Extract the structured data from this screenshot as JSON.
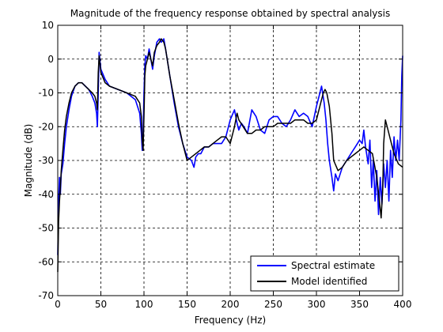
{
  "chart_data": {
    "type": "line",
    "title": "Magnitude of the frequency response obtained by spectral analysis",
    "xlabel": "Frequency (Hz)",
    "ylabel": "Magnitude (dB)",
    "xlim": [
      0,
      400
    ],
    "ylim": [
      -70,
      10
    ],
    "xticks": [
      0,
      50,
      100,
      150,
      200,
      250,
      300,
      350,
      400
    ],
    "yticks": [
      -70,
      -60,
      -50,
      -40,
      -30,
      -20,
      -10,
      0,
      10
    ],
    "grid": true,
    "legend_position": "bottom-right",
    "series": [
      {
        "name": "Spectral estimate",
        "color": "#0000ff",
        "x": [
          0,
          1,
          2,
          3,
          4,
          6,
          8,
          10,
          13,
          16,
          20,
          24,
          28,
          32,
          36,
          40,
          43,
          45,
          46,
          47,
          48,
          50,
          55,
          60,
          70,
          80,
          90,
          95,
          97,
          98,
          99,
          100,
          101,
          102,
          104,
          106,
          108,
          110,
          112,
          115,
          118,
          120,
          123,
          125,
          130,
          135,
          140,
          145,
          150,
          155,
          158,
          160,
          163,
          166,
          170,
          175,
          180,
          185,
          190,
          195,
          200,
          205,
          208,
          210,
          213,
          216,
          220,
          225,
          230,
          235,
          240,
          245,
          250,
          255,
          260,
          265,
          270,
          275,
          280,
          285,
          290,
          295,
          300,
          303,
          306,
          309,
          311,
          313,
          315,
          318,
          320,
          322,
          325,
          330,
          335,
          340,
          345,
          350,
          353,
          355,
          357,
          360,
          362,
          364,
          366,
          368,
          370,
          372,
          374,
          376,
          378,
          380,
          382,
          384,
          386,
          388,
          390,
          392,
          394,
          396,
          398,
          399,
          400
        ],
        "y": [
          -58,
          -42,
          -35,
          -40,
          -34,
          -31,
          -25,
          -20,
          -15,
          -11,
          -8,
          -7,
          -7,
          -8,
          -9,
          -11,
          -13,
          -16,
          -20,
          -10,
          2,
          -3,
          -6,
          -8,
          -9,
          -10,
          -12,
          -16,
          -22,
          -27,
          -22,
          -10,
          -2,
          1,
          0,
          3,
          0,
          -3,
          1,
          5,
          6,
          5,
          6,
          3,
          -5,
          -13,
          -20,
          -25,
          -29,
          -30,
          -32,
          -29,
          -28,
          -28,
          -26,
          -26,
          -25,
          -25,
          -25,
          -23,
          -18,
          -15,
          -19,
          -21,
          -19,
          -20,
          -22,
          -15,
          -17,
          -21,
          -22,
          -18,
          -17,
          -17,
          -19,
          -20,
          -18,
          -15,
          -17,
          -16,
          -17,
          -20,
          -14,
          -11,
          -8,
          -13,
          -18,
          -25,
          -30,
          -35,
          -39,
          -34,
          -36,
          -32,
          -30,
          -28,
          -26,
          -24,
          -25,
          -21,
          -26,
          -31,
          -24,
          -38,
          -30,
          -42,
          -33,
          -46,
          -35,
          -43,
          -31,
          -38,
          -30,
          -42,
          -27,
          -35,
          -23,
          -30,
          -24,
          -30,
          -18,
          -5,
          1
        ]
      },
      {
        "name": "Model identified",
        "color": "#000000",
        "x": [
          0,
          1,
          2,
          3,
          4,
          6,
          8,
          10,
          13,
          16,
          20,
          24,
          28,
          32,
          36,
          40,
          43,
          45,
          46,
          47,
          48,
          50,
          55,
          60,
          70,
          80,
          90,
          95,
          97,
          98,
          99,
          100,
          101,
          102,
          104,
          106,
          108,
          110,
          112,
          115,
          118,
          120,
          123,
          125,
          130,
          135,
          140,
          145,
          150,
          155,
          160,
          165,
          170,
          175,
          180,
          185,
          190,
          195,
          200,
          205,
          208,
          210,
          215,
          220,
          225,
          230,
          235,
          240,
          245,
          250,
          255,
          260,
          265,
          270,
          275,
          280,
          285,
          290,
          295,
          300,
          305,
          308,
          310,
          312,
          315,
          318,
          320,
          325,
          330,
          335,
          340,
          345,
          350,
          355,
          360,
          365,
          370,
          373,
          375,
          377,
          378,
          380,
          383,
          386,
          390,
          395,
          400
        ],
        "y": [
          -63,
          -48,
          -42,
          -38,
          -33,
          -27,
          -21,
          -17,
          -13,
          -10,
          -8,
          -7,
          -7,
          -8,
          -9,
          -10,
          -11,
          -13,
          -15,
          -4,
          1,
          -4,
          -7,
          -8,
          -9,
          -10,
          -11,
          -13,
          -17,
          -24,
          -27,
          -17,
          -5,
          -2,
          0,
          2,
          0,
          -2,
          2,
          4,
          5,
          6,
          5,
          3,
          -5,
          -12,
          -19,
          -25,
          -30,
          -29,
          -28,
          -27,
          -26,
          -26,
          -25,
          -24,
          -23,
          -23,
          -25,
          -20,
          -16,
          -18,
          -20,
          -22,
          -22,
          -21,
          -21,
          -20,
          -20,
          -20,
          -19,
          -19,
          -19,
          -19,
          -18,
          -18,
          -18,
          -19,
          -19,
          -18,
          -13,
          -10,
          -9,
          -10,
          -14,
          -22,
          -30,
          -33,
          -32,
          -30,
          -29,
          -28,
          -27,
          -26,
          -27,
          -28,
          -35,
          -42,
          -47,
          -38,
          -25,
          -18,
          -21,
          -24,
          -28,
          -31,
          -32
        ]
      }
    ]
  }
}
